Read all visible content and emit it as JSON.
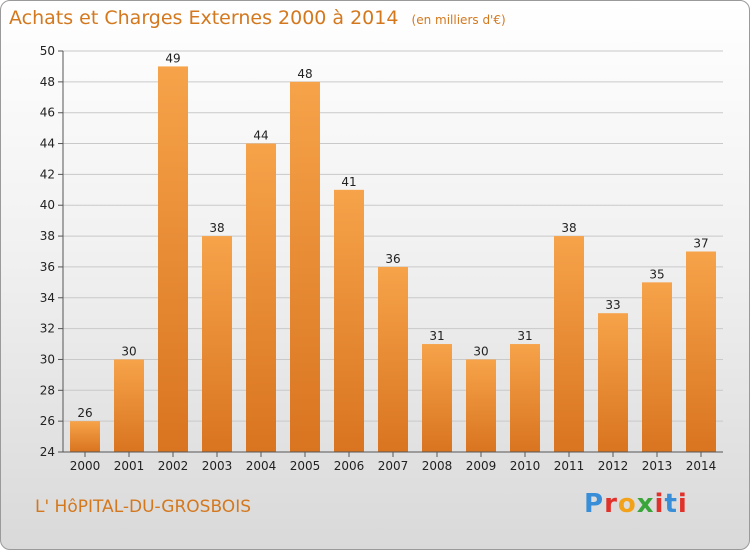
{
  "header": {
    "title": "Achats et Charges Externes 2000 à 2014",
    "unit": "(en milliers d'€)"
  },
  "footer": {
    "commune": "L' HôPITAL-DU-GROSBOIS",
    "logo": "Proxiti"
  },
  "colors": {
    "bar_light": "#f6a34a",
    "bar_dark": "#d97420",
    "title": "#d4781e",
    "grid": "#c9c9c9"
  },
  "chart_data": {
    "type": "bar",
    "title": "Achats et Charges Externes 2000 à 2014",
    "subtitle": "(en milliers d'€)",
    "categories": [
      "2000",
      "2001",
      "2002",
      "2003",
      "2004",
      "2005",
      "2006",
      "2007",
      "2008",
      "2009",
      "2010",
      "2011",
      "2012",
      "2013",
      "2014"
    ],
    "values": [
      26,
      30,
      49,
      38,
      44,
      48,
      41,
      36,
      31,
      30,
      31,
      38,
      33,
      35,
      37
    ],
    "xlabel": "",
    "ylabel": "",
    "ylim": [
      24,
      50
    ],
    "yticks": [
      24,
      26,
      28,
      30,
      32,
      34,
      36,
      38,
      40,
      42,
      44,
      46,
      48,
      50
    ],
    "grid": true,
    "legend": "none"
  }
}
